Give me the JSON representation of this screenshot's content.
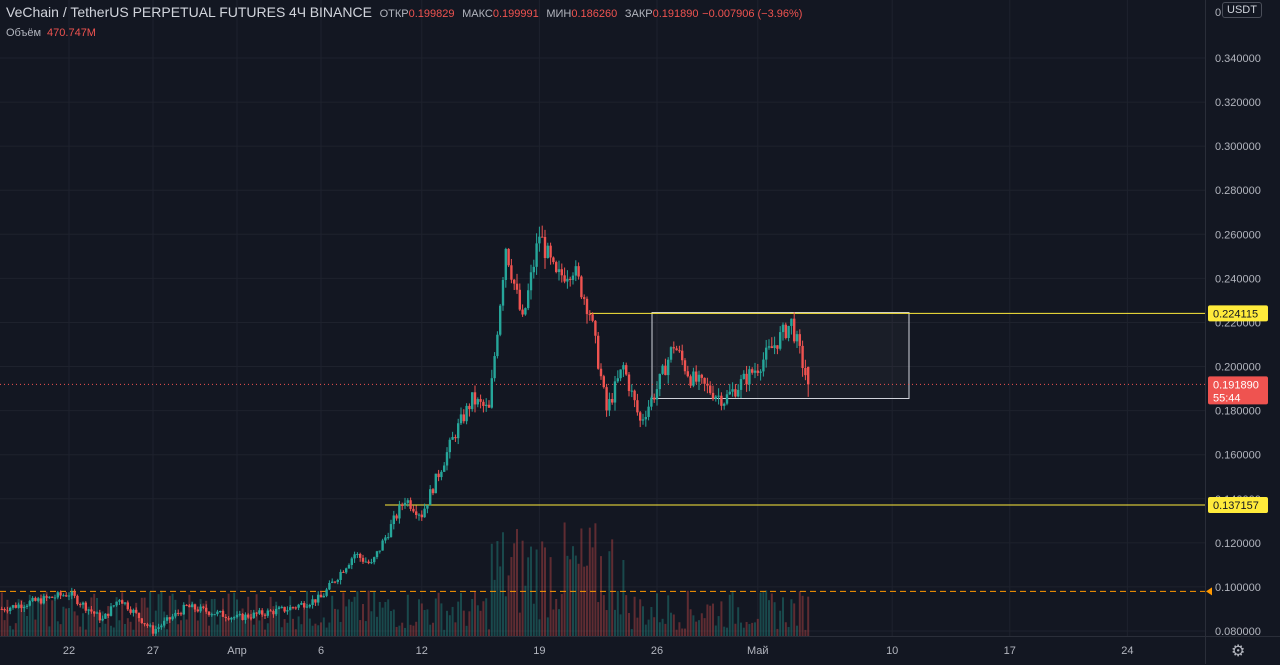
{
  "legend": {
    "symbol": "VeChain / TetherUS PERPETUAL FUTURES",
    "interval": "4Ч",
    "exchange": "BINANCE",
    "open_label": "ОТКР",
    "open_value": "0.199829",
    "high_label": "МАКС",
    "high_value": "0.199991",
    "low_label": "МИН",
    "low_value": "0.186260",
    "close_label": "ЗАКР",
    "close_value": "0.191890",
    "change_value": "−0.007906 (−3.96%)"
  },
  "volume_legend": {
    "label": "Объём",
    "value": "470.747M"
  },
  "currency_button": "USDT",
  "price_axis": {
    "ticks": [
      "0.340000",
      "0.320000",
      "0.300000",
      "0.280000",
      "0.260000",
      "0.240000",
      "0.220000",
      "0.200000",
      "0.180000",
      "0.160000",
      "0.140000",
      "0.120000",
      "0.100000",
      "0.080000"
    ],
    "top_partial": "0"
  },
  "time_axis": {
    "ticks": [
      "22",
      "27",
      "Апр",
      "6",
      "12",
      "19",
      "26",
      "Май",
      "10",
      "17",
      "24"
    ]
  },
  "price_labels": {
    "upper_level": "0.224115",
    "lower_level": "0.137157",
    "last_price": "0.191890",
    "countdown": "55:44"
  },
  "chart_data": {
    "type": "candlestick",
    "title": "VeChain / TetherUS PERPETUAL FUTURES",
    "interval": "4Ч",
    "ylim": [
      0.078,
      0.352
    ],
    "horizontal_lines": [
      {
        "value": 0.224115,
        "color": "#ffeb3b"
      },
      {
        "value": 0.137157,
        "color": "#ffeb3b"
      },
      {
        "value": 0.098,
        "color": "#ff9800",
        "style": "dashed"
      },
      {
        "value": 0.19189,
        "color": "#ef5350",
        "style": "dotted"
      }
    ],
    "rectangle": {
      "y_top": 0.2245,
      "y_bottom": 0.1855
    },
    "waypoints": [
      {
        "date": "Mar 18",
        "price": 0.09
      },
      {
        "date": "Mar 22",
        "price": 0.097
      },
      {
        "date": "Mar 24",
        "price": 0.085
      },
      {
        "date": "Mar 25",
        "price": 0.095
      },
      {
        "date": "Mar 27",
        "price": 0.08
      },
      {
        "date": "Mar 29",
        "price": 0.091
      },
      {
        "date": "Apr 1",
        "price": 0.086
      },
      {
        "date": "Apr 4",
        "price": 0.09
      },
      {
        "date": "Apr 6",
        "price": 0.095
      },
      {
        "date": "Apr 8",
        "price": 0.115
      },
      {
        "date": "Apr 9",
        "price": 0.11
      },
      {
        "date": "Apr 11",
        "price": 0.14
      },
      {
        "date": "Apr 12",
        "price": 0.133
      },
      {
        "date": "Apr 14",
        "price": 0.17
      },
      {
        "date": "Apr 15",
        "price": 0.185
      },
      {
        "date": "Apr 16",
        "price": 0.18
      },
      {
        "date": "Apr 17",
        "price": 0.255
      },
      {
        "date": "Apr 18",
        "price": 0.22
      },
      {
        "date": "Apr 19",
        "price": 0.26
      },
      {
        "date": "Apr 20",
        "price": 0.24
      },
      {
        "date": "Apr 21",
        "price": 0.245
      },
      {
        "date": "Apr 22",
        "price": 0.225
      },
      {
        "date": "Apr 23",
        "price": 0.18
      },
      {
        "date": "Apr 24",
        "price": 0.2
      },
      {
        "date": "Apr 25",
        "price": 0.175
      },
      {
        "date": "Apr 26",
        "price": 0.19
      },
      {
        "date": "Apr 27",
        "price": 0.21
      },
      {
        "date": "Apr 28",
        "price": 0.195
      },
      {
        "date": "Apr 30",
        "price": 0.185
      },
      {
        "date": "May 2",
        "price": 0.2
      },
      {
        "date": "May 4",
        "price": 0.22
      },
      {
        "date": "May 5",
        "price": 0.192
      }
    ]
  }
}
